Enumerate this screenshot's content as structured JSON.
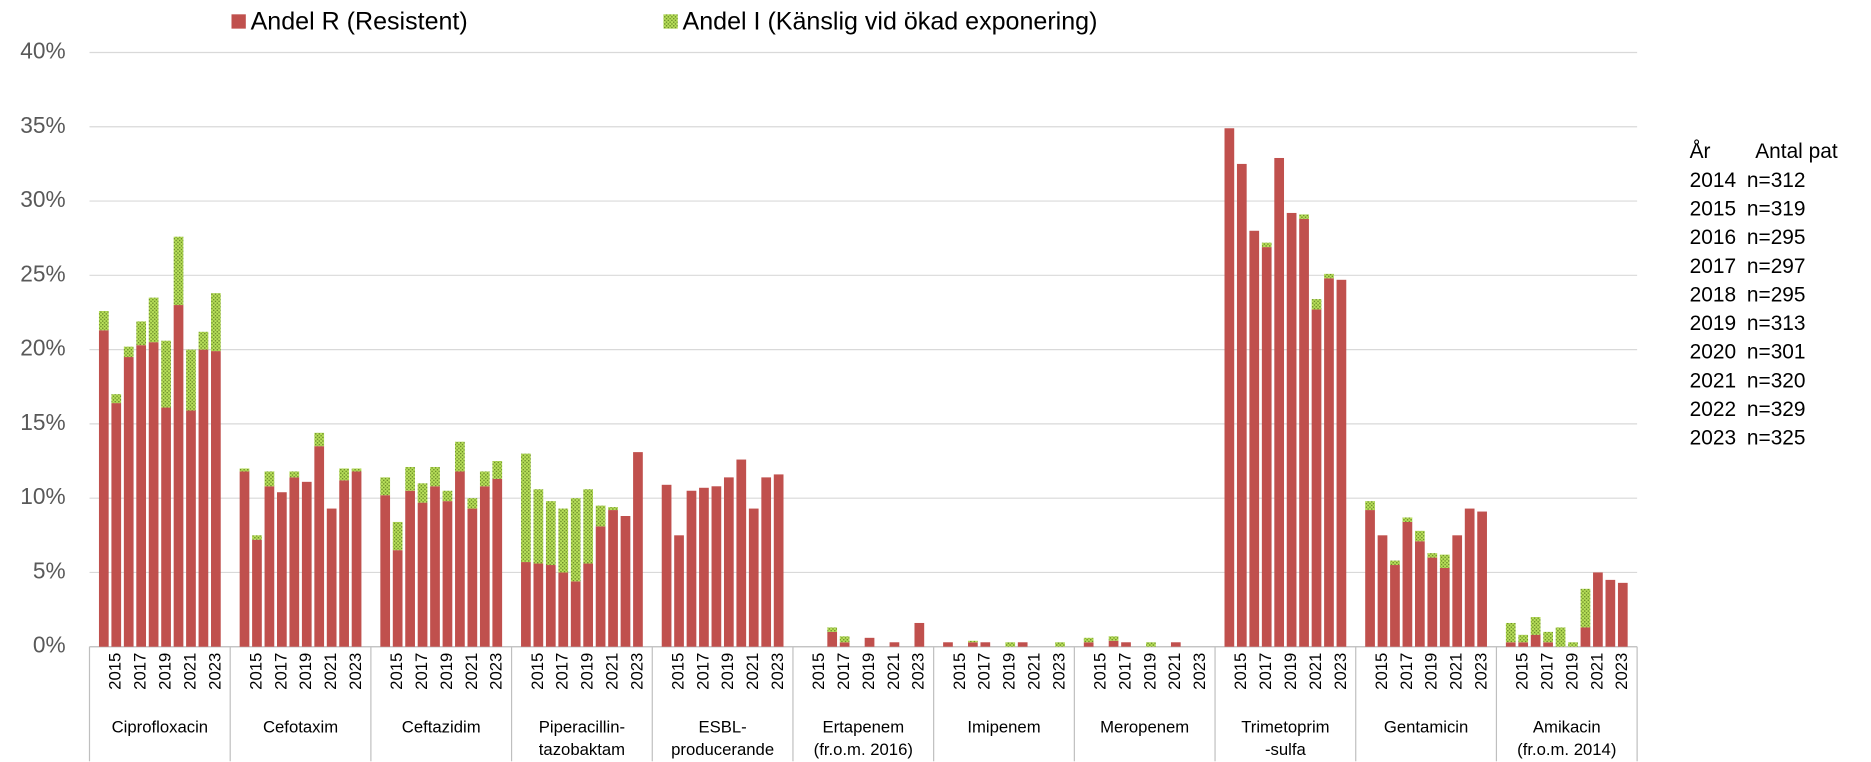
{
  "chart_data": {
    "type": "grouped-stacked-bar",
    "groups": [
      [
        "Ciprofloxacin"
      ],
      [
        "Cefotaxim"
      ],
      [
        "Ceftazidim"
      ],
      [
        "Piperacillin-",
        "tazobaktam"
      ],
      [
        "ESBL-",
        "producerande"
      ],
      [
        "Ertapenem",
        "(fr.o.m. 2016)"
      ],
      [
        "Imipenem"
      ],
      [
        "Meropenem"
      ],
      [
        "Trimetoprim",
        "-sulfa"
      ],
      [
        "Gentamicin"
      ],
      [
        "Amikacin",
        "(fr.o.m. 2014)"
      ]
    ],
    "x_labels": [
      null,
      "2015",
      null,
      "2017",
      null,
      "2019",
      null,
      "2021",
      null,
      "2023"
    ],
    "series": [
      {
        "name": "Andel R (Resistent)",
        "color": "#c0504d",
        "pattern": "solid",
        "values": [
          [
            21.3,
            16.4,
            19.5,
            20.3,
            20.5,
            16.1,
            23.0,
            15.9,
            20.0,
            19.9
          ],
          [
            11.8,
            7.2,
            10.8,
            10.4,
            11.4,
            11.1,
            13.5,
            9.3,
            11.2,
            11.8
          ],
          [
            10.2,
            6.5,
            10.5,
            9.7,
            10.8,
            9.8,
            11.8,
            9.3,
            10.8,
            11.3
          ],
          [
            5.7,
            5.6,
            5.5,
            5.0,
            4.4,
            5.6,
            8.1,
            9.2,
            8.8,
            13.1
          ],
          [
            10.9,
            7.5,
            10.5,
            10.7,
            10.8,
            11.4,
            12.6,
            9.3,
            11.4,
            11.6
          ],
          [
            null,
            null,
            1.0,
            0.3,
            0,
            0.6,
            0,
            0.3,
            0,
            1.6
          ],
          [
            0.3,
            0,
            0.3,
            0.3,
            0,
            0,
            0.3,
            0,
            0,
            0
          ],
          [
            0.3,
            0,
            0.4,
            0.3,
            0,
            0,
            0,
            0.3,
            0,
            0
          ],
          [
            34.9,
            32.5,
            28.0,
            26.9,
            32.9,
            29.2,
            28.8,
            22.7,
            24.8,
            24.7
          ],
          [
            9.2,
            7.5,
            5.5,
            8.4,
            7.1,
            6.0,
            5.3,
            7.5,
            9.3,
            9.1
          ],
          [
            0.3,
            0.3,
            0.8,
            0.3,
            0,
            0,
            1.3,
            5.0,
            4.5,
            4.3
          ]
        ]
      },
      {
        "name": "Andel I (Känslig vid ökad exponering)",
        "color": "#b8e05a",
        "pattern": "dots",
        "values": [
          [
            1.3,
            0.6,
            0.7,
            1.6,
            3.0,
            4.5,
            4.6,
            4.1,
            1.2,
            3.9
          ],
          [
            0.2,
            0.3,
            1.0,
            0,
            0.4,
            0,
            0.9,
            0,
            0.8,
            0.2
          ],
          [
            1.2,
            1.9,
            1.6,
            1.3,
            1.3,
            0.7,
            2.0,
            0.7,
            1.0,
            1.2
          ],
          [
            7.3,
            5.0,
            4.3,
            4.3,
            5.6,
            5.0,
            1.4,
            0.2,
            0,
            0
          ],
          [
            0,
            0,
            0,
            0,
            0,
            0,
            0,
            0,
            0,
            0
          ],
          [
            null,
            null,
            0.3,
            0.4,
            0,
            0,
            0,
            0,
            0,
            0
          ],
          [
            0,
            0,
            0.1,
            0,
            0,
            0.3,
            0,
            0,
            0,
            0.3
          ],
          [
            0.3,
            0,
            0.3,
            0,
            0,
            0.3,
            0,
            0,
            0,
            0
          ],
          [
            0,
            0,
            0,
            0.3,
            0,
            0,
            0.3,
            0.7,
            0.3,
            0
          ],
          [
            0.6,
            0,
            0.3,
            0.3,
            0.7,
            0.3,
            0.9,
            0,
            0,
            0
          ],
          [
            1.3,
            0.5,
            1.2,
            0.7,
            1.3,
            0.3,
            2.6,
            0,
            0,
            0
          ]
        ]
      }
    ],
    "ylim": [
      0,
      40
    ],
    "yticks": [
      {
        "value": 0,
        "label": "0%"
      },
      {
        "value": 5,
        "label": "5%"
      },
      {
        "value": 10,
        "label": "10%"
      },
      {
        "value": 15,
        "label": "15%"
      },
      {
        "value": 20,
        "label": "20%"
      },
      {
        "value": 25,
        "label": "25%"
      },
      {
        "value": 30,
        "label": "30%"
      },
      {
        "value": 35,
        "label": "35%"
      },
      {
        "value": 40,
        "label": "40%"
      }
    ],
    "grid": true,
    "legend": "top",
    "table": {
      "header": [
        "År",
        "Antal pat"
      ],
      "rows": [
        [
          "2014",
          "n=312"
        ],
        [
          "2015",
          "n=319"
        ],
        [
          "2016",
          "n=295"
        ],
        [
          "2017",
          "n=297"
        ],
        [
          "2018",
          "n=295"
        ],
        [
          "2019",
          "n=313"
        ],
        [
          "2020",
          "n=301"
        ],
        [
          "2021",
          "n=320"
        ],
        [
          "2022",
          "n=329"
        ],
        [
          "2023",
          "n=325"
        ]
      ]
    }
  }
}
